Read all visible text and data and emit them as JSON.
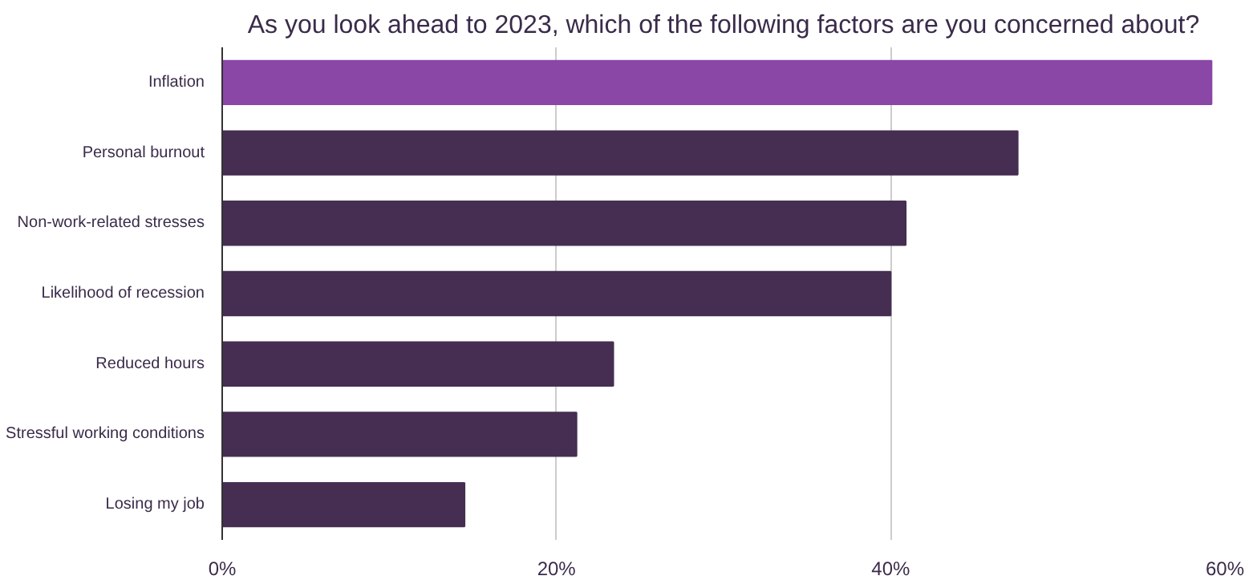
{
  "chart_data": {
    "type": "bar",
    "orientation": "horizontal",
    "title": "As you look ahead to 2023, which of the following factors are you concerned about?",
    "categories": [
      "Inflation",
      "Personal burnout",
      "Non-work-related stresses",
      "Likelihood of recession",
      "Reduced hours",
      "Stressful working conditions",
      "Losing my job"
    ],
    "values": [
      59.2,
      47.6,
      40.9,
      40.0,
      23.4,
      21.2,
      14.5
    ],
    "colors": [
      "#8a47a6",
      "#452e52",
      "#452e52",
      "#452e52",
      "#452e52",
      "#452e52",
      "#452e52"
    ],
    "xlim": [
      0,
      60
    ],
    "xticks": [
      {
        "value": 0,
        "label": "0%"
      },
      {
        "value": 20,
        "label": "20%"
      },
      {
        "value": 40,
        "label": "40%"
      },
      {
        "value": 60,
        "label": "60%"
      }
    ],
    "grid": "x"
  }
}
